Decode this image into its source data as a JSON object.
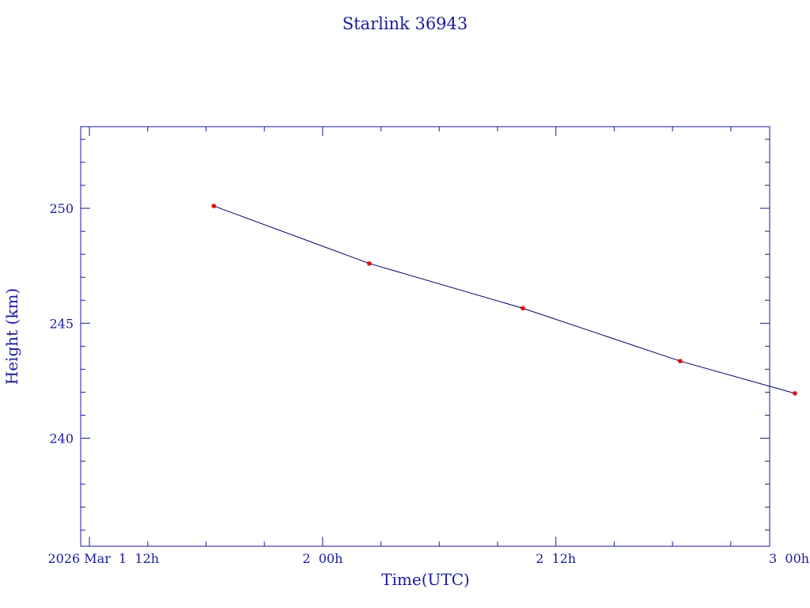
{
  "chart_data": {
    "type": "line",
    "title": "Starlink 36943",
    "xlabel": "Time(UTC)",
    "ylabel": "Height (km)",
    "x_unit": "hours since 2026 Mar 1 00h",
    "xlim": [
      11.55,
      47.0
    ],
    "ylim": [
      235.3,
      253.55
    ],
    "x_ticks": [
      {
        "x": 12,
        "label": "2026 Mar  1  12h"
      },
      {
        "x": 24,
        "label": "2  00h"
      },
      {
        "x": 36,
        "label": "2  12h"
      },
      {
        "x": 48,
        "label": "3  00h"
      }
    ],
    "y_ticks": [
      {
        "y": 240,
        "label": "240"
      },
      {
        "y": 245,
        "label": "245"
      },
      {
        "y": 250,
        "label": "250"
      }
    ],
    "series": [
      {
        "x": [
          18.4,
          26.4,
          34.3,
          42.4,
          48.3
        ],
        "y": [
          250.1,
          247.6,
          245.65,
          243.35,
          241.95
        ]
      }
    ],
    "grid": false,
    "legend": "none",
    "colors": {
      "axis": "#1a1a9c",
      "line": "#00006e",
      "marker": "#dd0000"
    }
  }
}
